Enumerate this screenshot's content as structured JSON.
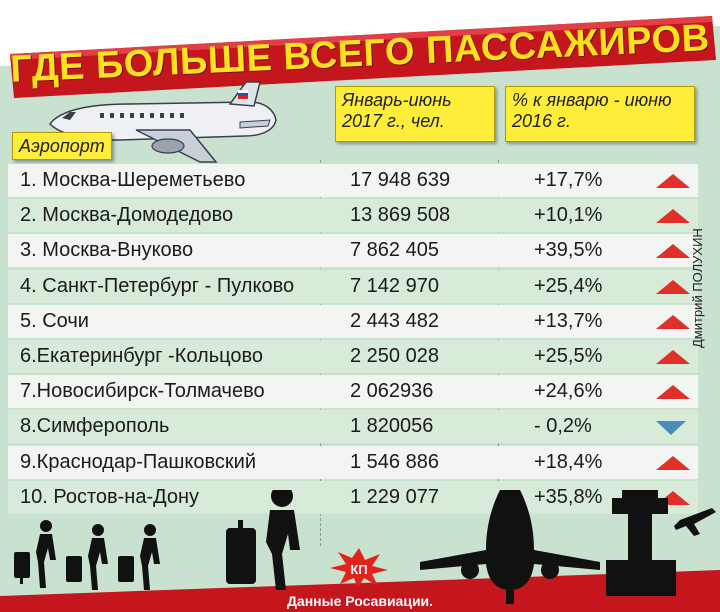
{
  "title": "ГДЕ БОЛЬШЕ ВСЕГО ПАССАЖИРОВ",
  "headers": {
    "airport": "Аэропорт",
    "period": "Январь-июнь 2017 г., чел.",
    "change": "% к январю - июню 2016 г."
  },
  "rows": [
    {
      "name": "1. Москва-Шереметьево",
      "value": "17 948 639",
      "pct": "+17,7%",
      "trend": "up"
    },
    {
      "name": "2. Москва-Домодедово",
      "value": "13 869 508",
      "pct": "+10,1%",
      "trend": "up"
    },
    {
      "name": "3. Москва-Внуково",
      "value": "7 862 405",
      "pct": "+39,5%",
      "trend": "up"
    },
    {
      "name": "4. Санкт-Петербург - Пулково",
      "value": "7 142 970",
      "pct": "+25,4%",
      "trend": "up"
    },
    {
      "name": "5. Сочи",
      "value": "2 443 482",
      "pct": "+13,7%",
      "trend": "up"
    },
    {
      "name": "6.Екатеринбург -Кольцово",
      "value": "2 250 028",
      "pct": "+25,5%",
      "trend": "up"
    },
    {
      "name": "7.Новосибирск-Толмачево",
      "value": "2 062936",
      "pct": "+24,6%",
      "trend": "up"
    },
    {
      "name": "8.Симферополь",
      "value": "1 820056",
      "pct": "- 0,2%",
      "trend": "down"
    },
    {
      "name": "9.Краснодар-Пашковский",
      "value": "1 546 886",
      "pct": "+18,4%",
      "trend": "up"
    },
    {
      "name": "10. Ростов-на-Дону",
      "value": "1 229 077",
      "pct": "+35,8%",
      "trend": "up"
    }
  ],
  "credit": "Дмитрий ПОЛУХИН",
  "source": "Данные Росавиации.",
  "logo_text": "КП",
  "colors": {
    "banner_red": "#c4161c",
    "title_yellow": "#ffe11e",
    "header_yellow": "#ffed3a",
    "background_green": "#c9e2cf",
    "up_arrow": "#e0302a",
    "down_arrow": "#4a8db8",
    "silhouette": "#111111"
  }
}
